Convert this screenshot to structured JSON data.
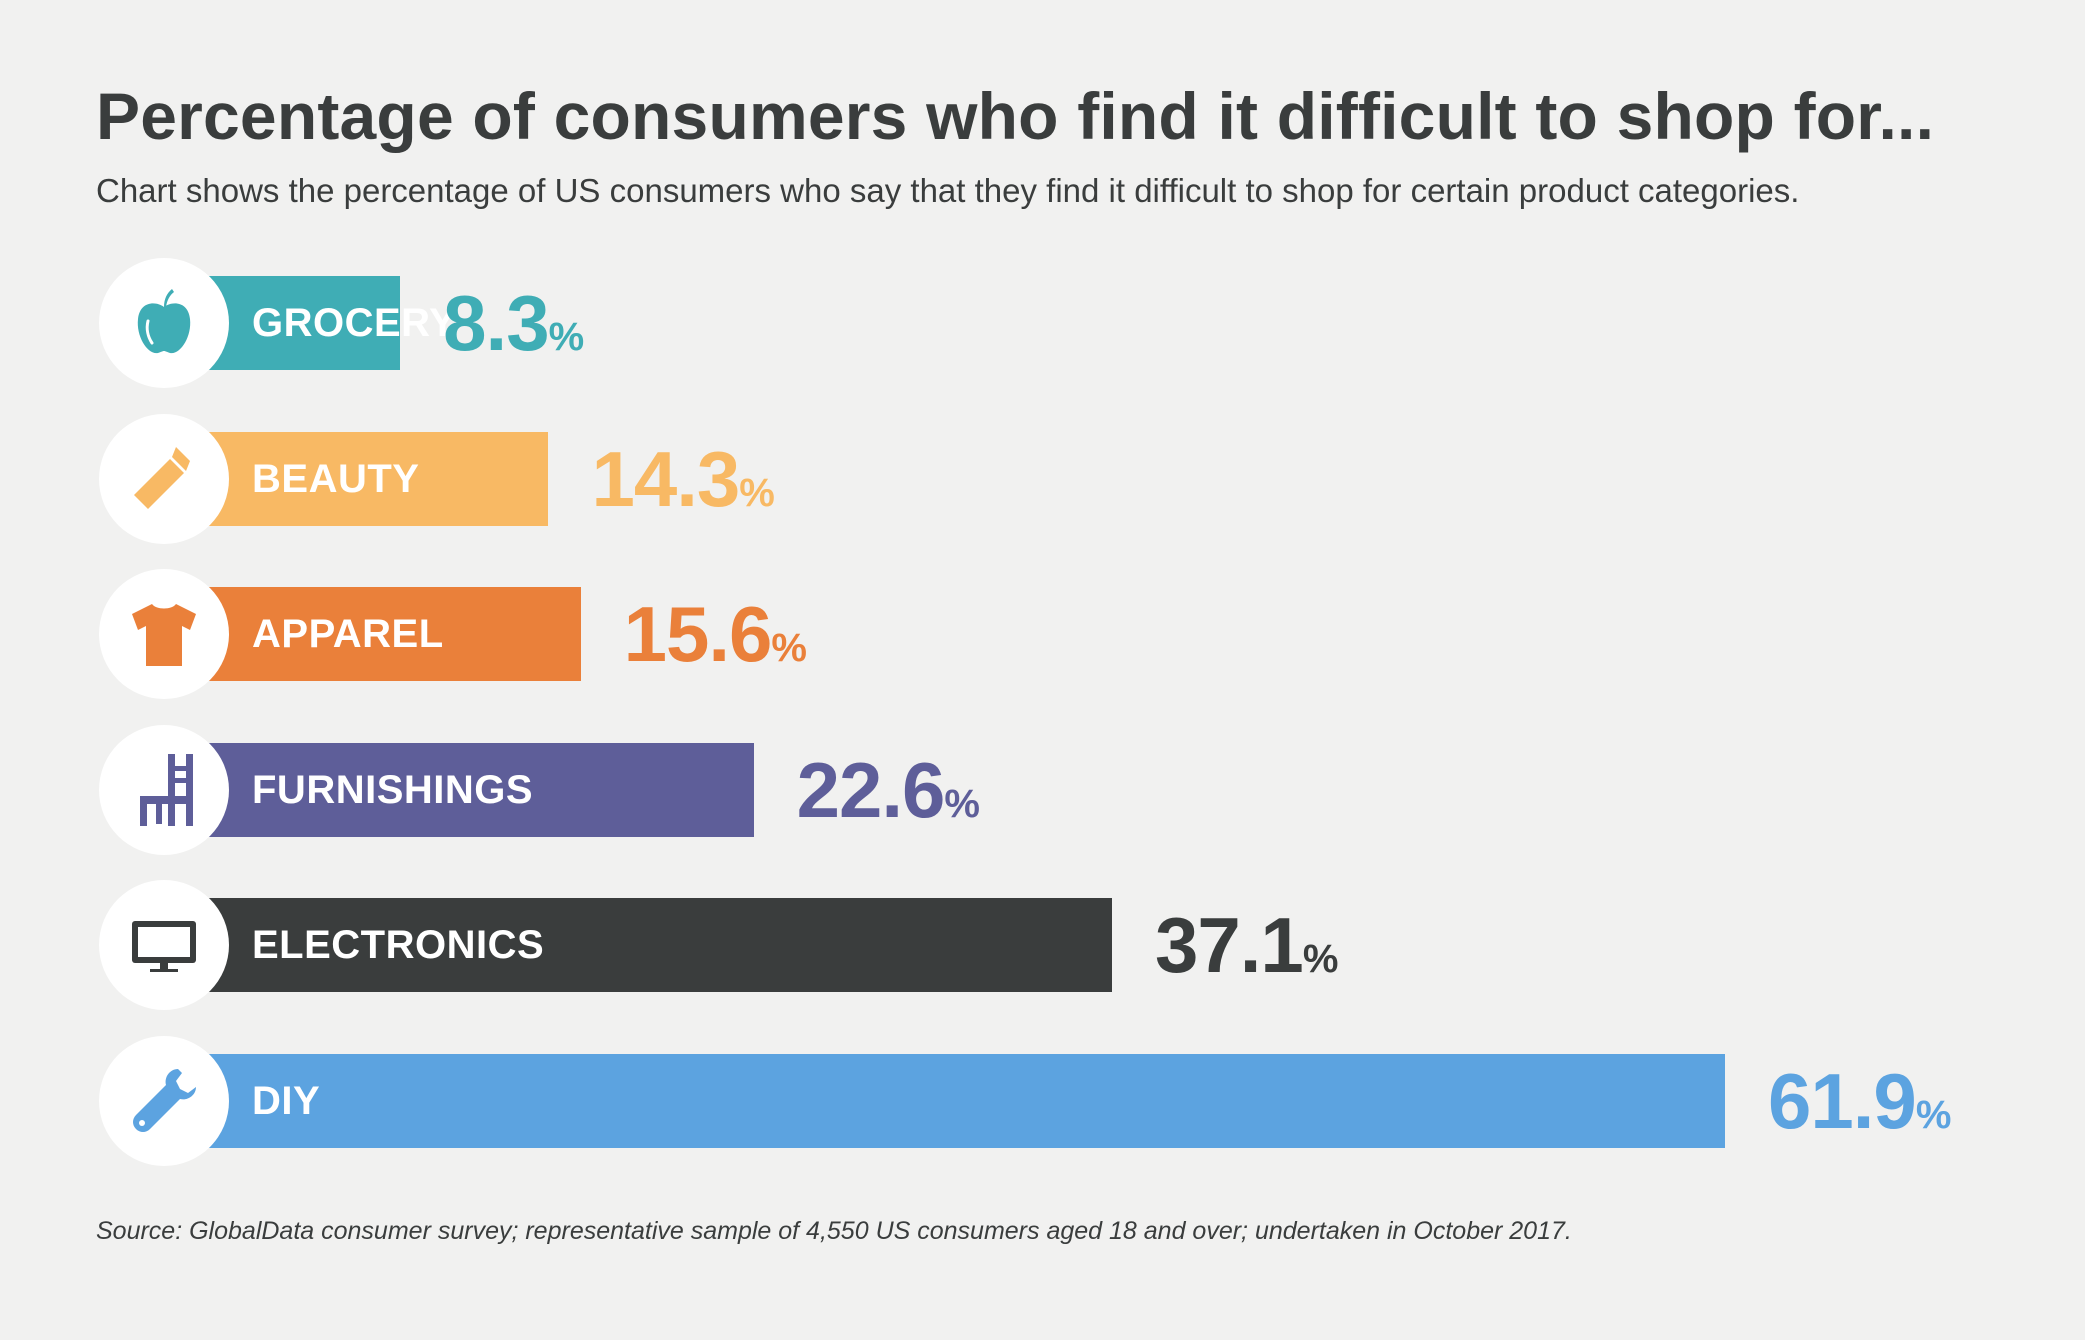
{
  "title": "Percentage of consumers who find it difficult to shop for...",
  "subtitle": "Chart shows the percentage of US consumers who say that they find it difficult to shop for certain product categories.",
  "source": "Source: GlobalData consumer survey; representative sample of 4,550 US consumers aged 18 and over; undertaken in October 2017.",
  "chart_data": {
    "type": "bar",
    "orientation": "horizontal",
    "categories": [
      "GROCERY",
      "BEAUTY",
      "APPAREL",
      "FURNISHINGS",
      "ELECTRONICS",
      "DIY"
    ],
    "values": [
      8.3,
      14.3,
      15.6,
      22.6,
      37.1,
      61.9
    ],
    "value_labels": [
      "8.3",
      "14.3",
      "15.6",
      "22.6",
      "37.1",
      "61.9"
    ],
    "unit": "%",
    "colors": [
      "#3fadb5",
      "#f8b964",
      "#ea803a",
      "#5e5e99",
      "#3a3d3d",
      "#5ca3e0"
    ],
    "icons": [
      "apple-icon",
      "lipstick-icon",
      "tshirt-icon",
      "chair-icon",
      "tv-icon",
      "wrench-icon"
    ],
    "xlim": [
      0,
      61.9
    ],
    "grid": false,
    "legend": "none"
  }
}
